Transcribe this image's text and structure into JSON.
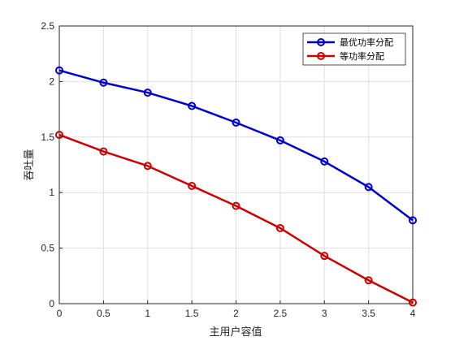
{
  "chart_data": {
    "type": "line",
    "xlabel": "主用户容值",
    "ylabel": "吞吐量",
    "xlim": [
      0,
      4
    ],
    "ylim": [
      0,
      2.5
    ],
    "x_ticks": [
      "0",
      "0.5",
      "1",
      "1.5",
      "2",
      "2.5",
      "3",
      "3.5",
      "4"
    ],
    "y_ticks": [
      "0",
      "0.5",
      "1",
      "1.5",
      "2",
      "2.5"
    ],
    "grid": true,
    "legend_position": "top-right",
    "x": [
      0,
      0.5,
      1,
      1.5,
      2,
      2.5,
      3,
      3.5,
      4
    ],
    "series": [
      {
        "name": "最优功率分配",
        "color": "#0000cc",
        "values": [
          2.1,
          1.99,
          1.9,
          1.78,
          1.63,
          1.47,
          1.28,
          1.05,
          0.75
        ]
      },
      {
        "name": "等功率分配",
        "color": "#cc0000",
        "values": [
          1.52,
          1.37,
          1.24,
          1.06,
          0.88,
          0.68,
          0.43,
          0.21,
          0.01
        ]
      }
    ]
  }
}
